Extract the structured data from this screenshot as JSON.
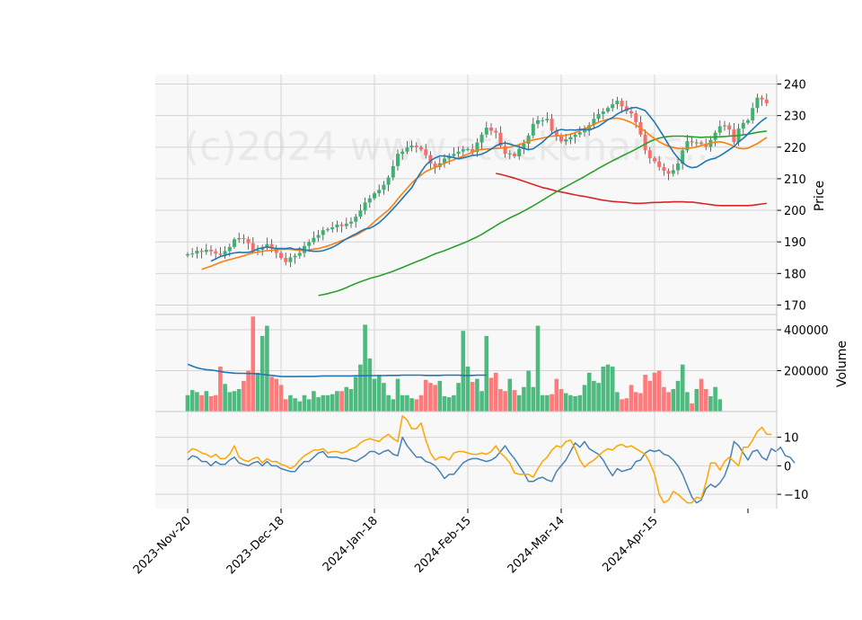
{
  "chart_data": {
    "type": "candlestick",
    "watermark": "(c)2024 www.stockcharts...",
    "colors": {
      "up": "#3cb371",
      "down": "#ff6b6b",
      "ma_fast": "#1f77b4",
      "ma_mid": "#ff7f0e",
      "ma_slow": "#2ca02c",
      "ma_long": "#d62728",
      "vol_ma": "#1f77b4",
      "osc_1": "#4682b4",
      "osc_2": "#ffa500",
      "panel_bg": "#f8f8f8",
      "grid": "#d4d4d4"
    },
    "x_tick_labels": [
      "2023-Nov-20",
      "2023-Dec-18",
      "2024-Jan-18",
      "2024-Feb-15",
      "2024-Mar-14",
      "2024-Apr-15"
    ],
    "x_tick_index": [
      0,
      20,
      40,
      60,
      80,
      100
    ],
    "price_panel": {
      "ylabel": "Price",
      "ylim": [
        167,
        243
      ],
      "yticks": [
        170,
        180,
        190,
        200,
        210,
        220,
        230,
        240
      ],
      "close": [
        186.1,
        186.3,
        187.2,
        186.8,
        187.5,
        187.0,
        186.3,
        185.9,
        187.1,
        188.4,
        190.8,
        191.2,
        190.9,
        189.6,
        187.2,
        187.5,
        188.2,
        189.3,
        187.9,
        186.5,
        184.9,
        183.6,
        185.1,
        185.6,
        186.5,
        188.7,
        189.9,
        191.3,
        192.2,
        193.7,
        194.0,
        194.6,
        195.5,
        195.0,
        195.8,
        196.4,
        198.0,
        199.9,
        202.5,
        203.8,
        205.4,
        206.5,
        208.1,
        210.4,
        214.0,
        217.9,
        218.6,
        219.9,
        220.5,
        220.0,
        219.3,
        217.5,
        214.8,
        213.7,
        214.9,
        216.4,
        217.2,
        217.9,
        218.6,
        219.3,
        219.4,
        218.5,
        221.5,
        224.0,
        226.2,
        225.2,
        224.6,
        220.4,
        217.9,
        218.0,
        217.1,
        219.4,
        221.1,
        223.7,
        227.4,
        228.5,
        228.5,
        229.0,
        225.2,
        223.8,
        221.8,
        222.5,
        223.2,
        224.0,
        224.7,
        225.5,
        227.0,
        229.0,
        230.5,
        231.3,
        232.4,
        233.6,
        234.7,
        232.9,
        231.4,
        230.7,
        227.9,
        224.0,
        219.0,
        216.5,
        215.5,
        213.7,
        212.5,
        211.6,
        212.7,
        214.8,
        219.0,
        221.9,
        221.5,
        221.5,
        221.0,
        220.1,
        222.3,
        224.6,
        226.6,
        226.9,
        225.6,
        221.6,
        225.9,
        227.7,
        228.5,
        232.4,
        235.7,
        235.1,
        233.9
      ],
      "ma_fast": [
        183.9,
        184.6,
        185.4,
        185.7,
        186.2,
        186.5,
        186.7,
        186.6,
        186.7,
        187.0,
        187.8,
        188.1,
        188.4,
        188.1,
        187.9,
        187.9,
        187.9,
        188.1,
        187.6,
        187.8,
        187.4,
        187.2,
        187.0,
        187.0,
        187.2,
        187.7,
        188.3,
        189.1,
        190.0,
        191.0,
        191.8,
        192.5,
        193.4,
        194.1,
        194.3,
        195.1,
        196.1,
        197.4,
        198.9,
        200.5,
        202.1,
        203.8,
        205.5,
        207.2,
        209.8,
        212.2,
        214.3,
        215.7,
        216.6,
        217.2,
        217.2,
        217.0,
        216.7,
        216.3,
        216.6,
        217.0,
        217.4,
        217.5,
        217.8,
        218.5,
        219.4,
        220.4,
        221.1,
        221.3,
        221.0,
        220.5,
        220.1,
        219.6,
        219.2,
        219.5,
        220.5,
        221.6,
        223.0,
        224.3,
        225.2,
        225.6,
        225.4,
        225.5,
        225.4,
        225.6,
        225.7,
        225.4,
        226.0,
        226.6,
        227.6,
        228.7,
        229.4,
        230.5,
        231.3,
        231.9,
        232.4,
        232.6,
        232.1,
        231.6,
        229.8,
        227.9,
        225.6,
        223.3,
        220.8,
        218.5,
        216.6,
        215.1,
        214.0,
        213.5,
        213.7,
        214.6,
        215.6,
        216.2,
        216.5,
        217.3,
        218.2,
        219.2,
        220.2,
        221.7,
        222.8,
        224.2,
        225.7,
        227.1,
        228.4,
        229.4
      ],
      "ma_mid": [
        181.3,
        181.8,
        182.3,
        182.9,
        183.5,
        184.0,
        184.4,
        184.8,
        185.2,
        185.6,
        186.1,
        186.5,
        186.8,
        187.0,
        187.2,
        187.3,
        187.5,
        187.6,
        187.7,
        187.6,
        187.5,
        187.3,
        187.3,
        187.5,
        187.7,
        187.9,
        188.3,
        188.7,
        189.3,
        189.8,
        190.4,
        190.9,
        191.5,
        192.1,
        192.9,
        193.8,
        195.0,
        196.4,
        197.7,
        198.9,
        200.1,
        201.7,
        203.6,
        205.3,
        207.0,
        208.7,
        210.0,
        211.2,
        212.3,
        213.0,
        213.6,
        214.2,
        214.9,
        215.5,
        216.0,
        216.6,
        217.2,
        217.8,
        218.4,
        219.1,
        219.3,
        219.4,
        219.5,
        219.6,
        219.7,
        219.8,
        220.0,
        220.4,
        220.8,
        221.3,
        221.9,
        222.3,
        222.6,
        222.9,
        223.2,
        223.5,
        223.6,
        223.6,
        223.8,
        224.1,
        224.6,
        225.2,
        225.8,
        226.5,
        227.2,
        227.9,
        228.4,
        228.8,
        229.1,
        229.2,
        228.9,
        228.4,
        227.8,
        227.0,
        226.1,
        225.0,
        223.8,
        222.7,
        221.7,
        220.9,
        220.3,
        219.9,
        219.6,
        219.5,
        219.6,
        219.8,
        220.1,
        220.5,
        220.9,
        221.3,
        221.6,
        221.7,
        221.4,
        220.9,
        220.3,
        219.7,
        219.5,
        219.7,
        220.4,
        221.1,
        222.1,
        223.1
      ],
      "ma_slow": [
        173.0,
        173.3,
        173.6,
        174.0,
        174.4,
        174.9,
        175.5,
        176.2,
        176.8,
        177.4,
        177.9,
        178.4,
        178.8,
        179.2,
        179.7,
        180.2,
        180.7,
        181.3,
        181.9,
        182.5,
        183.1,
        183.7,
        184.3,
        184.9,
        185.6,
        186.2,
        186.7,
        187.2,
        187.8,
        188.4,
        189.0,
        189.6,
        190.2,
        190.9,
        191.6,
        192.4,
        193.3,
        194.2,
        195.1,
        196.0,
        196.8,
        197.6,
        198.3,
        199.0,
        199.8,
        200.6,
        201.4,
        202.3,
        203.2,
        204.1,
        205.0,
        205.9,
        206.7,
        207.5,
        208.3,
        209.1,
        209.9,
        210.7,
        211.6,
        212.4,
        213.3,
        214.1,
        214.9,
        215.7,
        216.4,
        217.2,
        217.9,
        218.6,
        219.4,
        220.2,
        221.0,
        221.8,
        222.4,
        222.9,
        223.2,
        223.4,
        223.5,
        223.5,
        223.5,
        223.4,
        223.3,
        223.2,
        223.1,
        223.2,
        223.2,
        223.2,
        223.3,
        223.4,
        223.5,
        223.6,
        223.7,
        223.9,
        224.1,
        224.4,
        224.7,
        224.9,
        225.1
      ],
      "ma_long": [
        211.7,
        211.4,
        211.0,
        210.6,
        210.2,
        209.7,
        209.2,
        208.7,
        208.2,
        207.7,
        207.2,
        206.9,
        206.5,
        206.1,
        205.8,
        205.5,
        205.2,
        204.9,
        204.6,
        204.4,
        204.1,
        203.8,
        203.5,
        203.2,
        203.0,
        202.8,
        202.7,
        202.6,
        202.5,
        202.3,
        202.2,
        202.2,
        202.3,
        202.4,
        202.5,
        202.5,
        202.6,
        202.6,
        202.7,
        202.7,
        202.7,
        202.6,
        202.6,
        202.4,
        202.2,
        202.0,
        201.8,
        201.6,
        201.5,
        201.5,
        201.5,
        201.5,
        201.5,
        201.5,
        201.5,
        201.6,
        201.8,
        202.0,
        202.2
      ]
    },
    "volume_panel": {
      "ylabel": "Volume",
      "ylim": [
        0,
        475000
      ],
      "yticks": [
        200000,
        400000
      ],
      "ytick_labels": [
        "200000",
        "400000"
      ],
      "values": [
        80000,
        105000,
        95000,
        80000,
        100000,
        75000,
        80000,
        220000,
        135000,
        95000,
        100000,
        110000,
        150000,
        200000,
        465000,
        190000,
        370000,
        420000,
        170000,
        160000,
        130000,
        60000,
        80000,
        65000,
        50000,
        80000,
        60000,
        100000,
        70000,
        80000,
        80000,
        85000,
        100000,
        100000,
        120000,
        110000,
        170000,
        230000,
        425000,
        260000,
        160000,
        180000,
        140000,
        80000,
        60000,
        160000,
        80000,
        80000,
        65000,
        60000,
        80000,
        155000,
        140000,
        130000,
        150000,
        75000,
        70000,
        80000,
        140000,
        395000,
        220000,
        145000,
        160000,
        100000,
        370000,
        165000,
        190000,
        110000,
        100000,
        160000,
        105000,
        80000,
        120000,
        200000,
        120000,
        420000,
        80000,
        80000,
        85000,
        160000,
        110000,
        90000,
        80000,
        75000,
        80000,
        130000,
        190000,
        150000,
        140000,
        220000,
        230000,
        220000,
        95000,
        60000,
        65000,
        130000,
        95000,
        90000,
        180000,
        150000,
        190000,
        200000,
        120000,
        95000,
        110000,
        150000,
        230000,
        95000,
        40000,
        110000,
        160000,
        110000,
        75000,
        120000,
        60000
      ],
      "volume_ma": [
        232000,
        222000,
        214000,
        209000,
        205000,
        203000,
        200000,
        196000,
        192000,
        190000,
        188000,
        187000,
        187000,
        186000,
        186000,
        184000,
        182000,
        179000,
        177000,
        174000,
        172000,
        171000,
        171000,
        171000,
        172000,
        172000,
        172000,
        172000,
        173000,
        174000,
        174000,
        174000,
        174000,
        174000,
        174000,
        174000,
        175000,
        175000,
        175000,
        176000,
        176000,
        176000,
        176000,
        177000,
        177000,
        177000,
        178000,
        178000,
        178000,
        178000,
        178000,
        177000,
        177000,
        177000,
        177000,
        178000,
        178000,
        178000,
        178000,
        177000,
        177000,
        177000,
        178000,
        178000,
        178000
      ]
    },
    "oscillator_panel": {
      "ylim": [
        -15,
        19
      ],
      "yticks": [
        -10,
        0,
        10
      ],
      "ytick_labels": [
        "−10",
        "0",
        "10"
      ],
      "line1": [
        2.0,
        3.5,
        3.0,
        1.5,
        1.5,
        0.0,
        1.5,
        0.5,
        0.5,
        2.0,
        3.0,
        1.0,
        0.5,
        0.0,
        1.0,
        1.5,
        0.0,
        1.5,
        0.0,
        0.0,
        -1.0,
        -1.5,
        -2.0,
        -2.0,
        0.0,
        1.5,
        1.5,
        3.0,
        4.5,
        5.0,
        3.0,
        3.0,
        3.0,
        2.5,
        2.5,
        2.0,
        1.5,
        2.5,
        3.5,
        5.0,
        5.0,
        4.0,
        5.0,
        5.5,
        4.0,
        3.5,
        10.0,
        7.0,
        5.0,
        3.0,
        3.0,
        1.5,
        1.0,
        0.0,
        -2.0,
        -4.5,
        -3.0,
        -3.0,
        -1.0,
        1.0,
        2.0,
        2.5,
        2.5,
        2.0,
        1.5,
        2.0,
        3.0,
        5.0,
        7.0,
        4.5,
        2.5,
        0.0,
        -2.5,
        -5.5,
        -5.5,
        -4.5,
        -4.0,
        -5.0,
        -5.5,
        -2.0,
        0.0,
        2.0,
        5.0,
        8.0,
        6.5,
        8.5,
        6.0,
        5.0,
        4.0,
        2.0,
        -1.0,
        -3.5,
        -1.0,
        -2.0,
        -1.5,
        -1.0,
        1.5,
        2.0,
        4.5,
        5.5,
        5.0,
        5.5,
        4.0,
        3.5,
        2.0,
        0.0,
        -3.0,
        -7.0,
        -11.0,
        -13.0,
        -12.0,
        -8.0,
        -6.5,
        -7.5,
        -6.0,
        -3.5,
        1.0,
        8.5,
        7.0,
        4.5,
        2.0,
        5.0,
        5.5,
        3.0,
        2.0,
        6.0,
        5.0,
        6.5,
        3.5,
        3.0,
        1.0
      ],
      "line2": [
        4.5,
        6.0,
        5.5,
        4.5,
        4.0,
        3.0,
        4.0,
        2.5,
        2.5,
        4.0,
        7.0,
        3.0,
        2.0,
        1.5,
        2.5,
        3.0,
        1.0,
        2.5,
        1.5,
        1.5,
        0.5,
        0.0,
        -1.0,
        0.0,
        2.0,
        3.5,
        4.5,
        5.5,
        5.5,
        6.0,
        4.5,
        5.0,
        5.0,
        4.5,
        5.0,
        6.0,
        6.5,
        8.0,
        9.0,
        9.5,
        9.0,
        8.5,
        10.0,
        11.0,
        9.5,
        8.5,
        17.5,
        16.0,
        13.0,
        13.0,
        15.0,
        9.0,
        4.5,
        2.0,
        3.0,
        3.0,
        2.0,
        4.5,
        5.0,
        5.0,
        4.5,
        4.0,
        4.0,
        4.5,
        4.0,
        5.0,
        7.0,
        4.5,
        3.0,
        1.0,
        -2.5,
        -3.0,
        -3.0,
        -3.0,
        -4.0,
        -1.0,
        1.5,
        3.0,
        5.5,
        7.0,
        6.5,
        8.5,
        9.0,
        6.0,
        2.0,
        -0.5,
        1.0,
        2.0,
        3.5,
        5.0,
        6.0,
        5.5,
        7.0,
        7.5,
        6.5,
        7.0,
        6.0,
        5.0,
        4.0,
        1.0,
        -3.0,
        -10.0,
        -13.0,
        -12.0,
        -9.0,
        -10.0,
        -11.5,
        -13.0,
        -13.0,
        -11.0,
        -11.5,
        -6.0,
        1.0,
        1.0,
        -1.5,
        1.5,
        3.0,
        1.5,
        0.0,
        6.5,
        6.5,
        9.0,
        12.0,
        13.5,
        11.0,
        11.0
      ]
    }
  }
}
